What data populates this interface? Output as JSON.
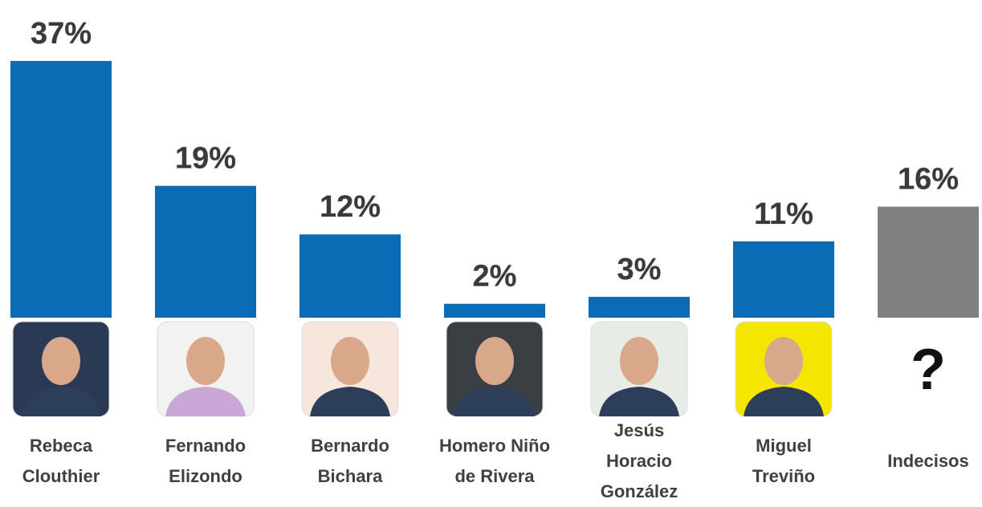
{
  "chart_data": {
    "type": "bar",
    "categories": [
      "Rebeca\nClouthier",
      "Fernando\nElizondo",
      "Bernardo\nBichara",
      "Homero Niño\nde Rivera",
      "Jesús\nHoracio\nGonzález",
      "Miguel\nTreviño",
      "Indecisos"
    ],
    "values": [
      37,
      19,
      12,
      2,
      3,
      11,
      16
    ],
    "value_labels": [
      "37%",
      "19%",
      "12%",
      "2%",
      "3%",
      "11%",
      "16%"
    ],
    "colors": [
      "#0b6bb5",
      "#0b6bb5",
      "#0b6bb5",
      "#0b6bb5",
      "#0b6bb5",
      "#0b6bb5",
      "#808080"
    ],
    "ylim": [
      0,
      40
    ],
    "unknown_icon": "?"
  }
}
